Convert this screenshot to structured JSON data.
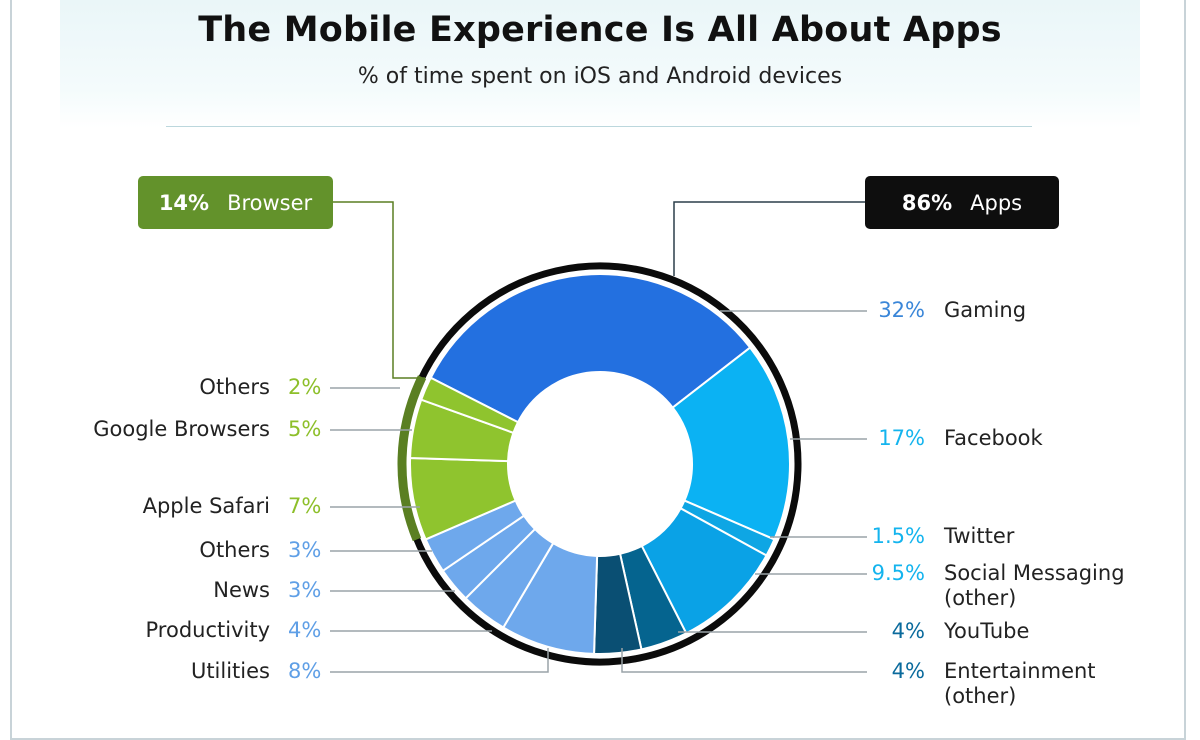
{
  "colors": {
    "gaming": "#2370e0",
    "facebook": "#0bb2f3",
    "twitter": "#0ea6e4",
    "social": "#0aa2e6",
    "youtube": "#05648f",
    "entertainment": "#0a4f73",
    "apps_other_light": "#6ea8ec",
    "browser_green": "#8fc42e",
    "browser_dark": "#5a7f22",
    "pct_browser": "#8dbf2a",
    "pct_apps_left": "#5f9fe6",
    "pct_gaming": "#3a86d8",
    "pct_facebook": "#14b4ee",
    "pct_youtube": "#0a6a9c"
  },
  "chart_data": {
    "type": "pie",
    "title": "The Mobile Experience Is All About Apps",
    "subtitle": "% of time spent on iOS and Android devices",
    "groups": [
      {
        "name": "Browser",
        "value": 14,
        "label": "14%",
        "text": "Browser"
      },
      {
        "name": "Apps",
        "value": 86,
        "label": "86%",
        "text": "Apps"
      }
    ],
    "segments": [
      {
        "name": "Gaming",
        "value": 32,
        "label": "32%",
        "text": "Gaming",
        "group": "Apps"
      },
      {
        "name": "Facebook",
        "value": 17,
        "label": "17%",
        "text": "Facebook",
        "group": "Apps"
      },
      {
        "name": "Twitter",
        "value": 1.5,
        "label": "1.5%",
        "text": "Twitter",
        "group": "Apps"
      },
      {
        "name": "Social Messaging (other)",
        "value": 9.5,
        "label": "9.5%",
        "text": "Social Messaging",
        "text2": "(other)",
        "group": "Apps"
      },
      {
        "name": "YouTube",
        "value": 4,
        "label": "4%",
        "text": "YouTube",
        "group": "Apps"
      },
      {
        "name": "Entertainment (other)",
        "value": 4,
        "label": "4%",
        "text": "Entertainment",
        "text2": "(other)",
        "group": "Apps"
      },
      {
        "name": "Utilities",
        "value": 8,
        "label": "8%",
        "text": "Utilities",
        "group": "Apps"
      },
      {
        "name": "Productivity",
        "value": 4,
        "label": "4%",
        "text": "Productivity",
        "group": "Apps"
      },
      {
        "name": "News",
        "value": 3,
        "label": "3%",
        "text": "News",
        "group": "Apps"
      },
      {
        "name": "Others (apps)",
        "value": 3,
        "label": "3%",
        "text": "Others",
        "group": "Apps"
      },
      {
        "name": "Apple Safari",
        "value": 7,
        "label": "7%",
        "text": "Apple Safari",
        "group": "Browser"
      },
      {
        "name": "Google Browsers",
        "value": 5,
        "label": "5%",
        "text": "Google Browsers",
        "group": "Browser"
      },
      {
        "name": "Others (browser)",
        "value": 2,
        "label": "2%",
        "text": "Others",
        "group": "Browser"
      }
    ]
  }
}
